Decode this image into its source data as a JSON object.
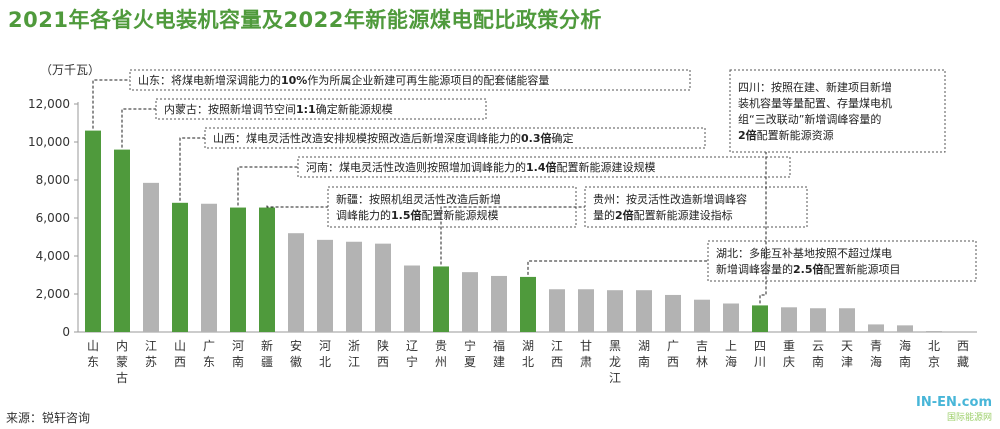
{
  "title": "2021年各省火电装机容量及2022年新能源煤电配比政策分析",
  "unit": "（万千瓦）",
  "source": "来源：锐轩咨询",
  "watermark": {
    "line1": "IN-EN.com",
    "line2": "国际能源网"
  },
  "colors": {
    "highlight": "#4f9a3c",
    "normal": "#b3b3b3",
    "title": "#4f9a3c"
  },
  "chart_data": {
    "type": "bar",
    "ylim": [
      0,
      12000
    ],
    "yticks": [
      "0",
      "2,000",
      "4,000",
      "6,000",
      "8,000",
      "10,000",
      "12,000"
    ],
    "categories": [
      "山东",
      "内蒙古",
      "江苏",
      "山西",
      "广东",
      "河南",
      "新疆",
      "安徽",
      "河北",
      "浙江",
      "陕西",
      "辽宁",
      "贵州",
      "宁夏",
      "福建",
      "湖北",
      "江西",
      "甘肃",
      "黑龙江",
      "湖南",
      "广西",
      "吉林",
      "上海",
      "四川",
      "重庆",
      "云南",
      "天津",
      "青海",
      "海南",
      "北京",
      "西藏"
    ],
    "values": [
      10600,
      9600,
      7850,
      6800,
      6750,
      6550,
      6550,
      5200,
      4850,
      4750,
      4650,
      3500,
      3450,
      3150,
      2950,
      2900,
      2250,
      2250,
      2200,
      2200,
      1950,
      1700,
      1500,
      1400,
      1300,
      1250,
      1250,
      400,
      350,
      50,
      0
    ],
    "highlighted": [
      true,
      true,
      false,
      true,
      false,
      true,
      true,
      false,
      false,
      false,
      false,
      false,
      true,
      false,
      false,
      true,
      false,
      false,
      false,
      false,
      false,
      false,
      false,
      true,
      false,
      false,
      false,
      false,
      false,
      false,
      false
    ]
  },
  "annotations": [
    {
      "target": "山东",
      "lines": [
        [
          {
            "t": "山东：将煤电新增深调能力的",
            "b": false
          },
          {
            "t": "10%",
            "b": true
          },
          {
            "t": "作为所属企业新建可再生能源项目的配套储能容量",
            "b": false
          }
        ]
      ]
    },
    {
      "target": "内蒙古",
      "lines": [
        [
          {
            "t": "内蒙古：按照新增调节空间",
            "b": false
          },
          {
            "t": "1:1",
            "b": true
          },
          {
            "t": "确定新能源规模",
            "b": false
          }
        ]
      ]
    },
    {
      "target": "山西",
      "lines": [
        [
          {
            "t": "山西：煤电灵活性改造安排规模按照改造后新增深度调峰能力的",
            "b": false
          },
          {
            "t": "0.3倍",
            "b": true
          },
          {
            "t": "确定",
            "b": false
          }
        ]
      ]
    },
    {
      "target": "河南",
      "lines": [
        [
          {
            "t": "河南：煤电灵活性改造则按照增加调峰能力的",
            "b": false
          },
          {
            "t": "1.4倍",
            "b": true
          },
          {
            "t": "配置新能源建设规模",
            "b": false
          }
        ]
      ]
    },
    {
      "target": "新疆",
      "lines": [
        [
          {
            "t": "新疆：按照机组灵活性改造后新增",
            "b": false
          }
        ],
        [
          {
            "t": "调峰能力的",
            "b": false
          },
          {
            "t": "1.5倍",
            "b": true
          },
          {
            "t": "配置新能源规模",
            "b": false
          }
        ]
      ]
    },
    {
      "target": "贵州",
      "lines": [
        [
          {
            "t": "贵州：按灵活性改造新增调峰容",
            "b": false
          }
        ],
        [
          {
            "t": "量的",
            "b": false
          },
          {
            "t": "2倍",
            "b": true
          },
          {
            "t": "配置新能源建设指标",
            "b": false
          }
        ]
      ]
    },
    {
      "target": "湖北",
      "lines": [
        [
          {
            "t": "湖北：多能互补基地按照不超过煤电",
            "b": false
          }
        ],
        [
          {
            "t": "新增调峰容量的",
            "b": false
          },
          {
            "t": "2.5倍",
            "b": true
          },
          {
            "t": "配置新能源项目",
            "b": false
          }
        ]
      ]
    },
    {
      "target": "四川",
      "lines": [
        [
          {
            "t": "四川：按照在建、新建项目新增",
            "b": false
          }
        ],
        [
          {
            "t": "装机容量等量配置、存量煤电机",
            "b": false
          }
        ],
        [
          {
            "t": "组“三改联动”新增调峰容量的",
            "b": false
          }
        ],
        [
          {
            "t": "2倍",
            "b": true
          },
          {
            "t": "配置新能源资源",
            "b": false
          }
        ]
      ]
    }
  ]
}
